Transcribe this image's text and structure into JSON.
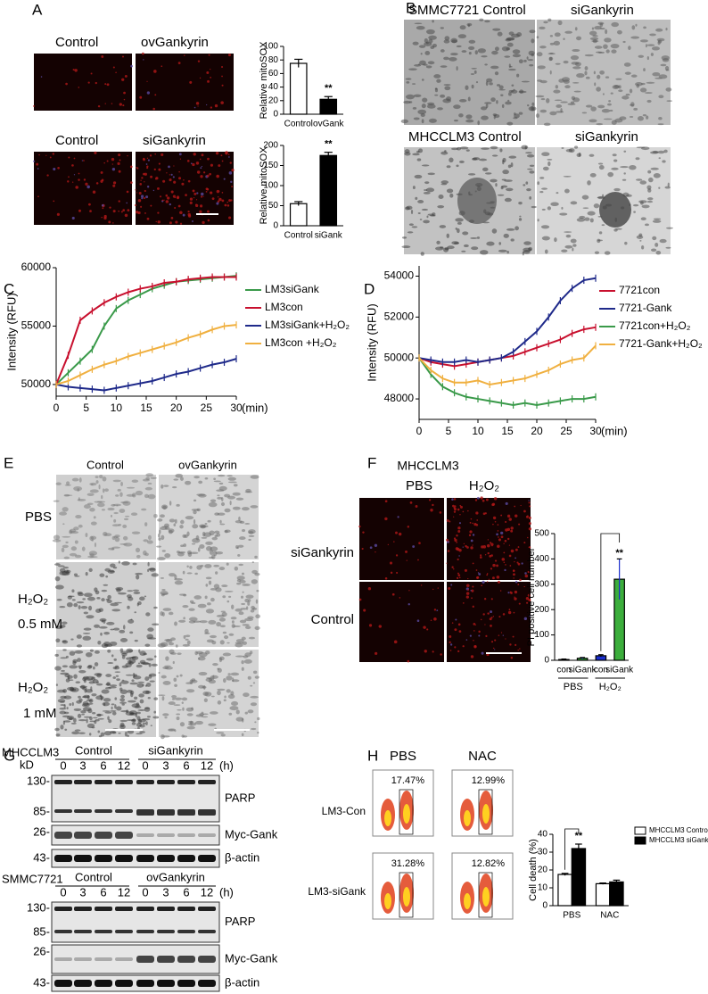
{
  "panel_labels": [
    "A",
    "B",
    "C",
    "D",
    "E",
    "F",
    "G",
    "H"
  ],
  "panel_a": {
    "top": [
      "Control",
      "ovGankyrin"
    ],
    "bottom": [
      "Control",
      "siGankyrin"
    ]
  },
  "panel_b": {
    "top": [
      "SMMC7721 Control",
      "siGankyrin"
    ],
    "bottom": [
      "MHCCLM3 Control",
      "siGankyrin"
    ]
  },
  "panel_e": {
    "columns": [
      "Control",
      "ovGankyrin"
    ],
    "rows": [
      [
        "PBS"
      ],
      [
        "H₂O₂",
        "0.5 mM"
      ],
      [
        "H₂O₂",
        "1 mM"
      ]
    ]
  },
  "panel_f": {
    "title": "MHCCLM3",
    "columns": [
      "PBS",
      "H₂O₂"
    ],
    "rows": [
      "siGankyrin",
      "Control"
    ]
  },
  "panel_g": {
    "blots": [
      {
        "cell_line": "MHCCLM3",
        "groups": [
          "Control",
          "siGankyrin"
        ],
        "unit": "kD",
        "times": [
          "0",
          "3",
          "6",
          "12",
          "0",
          "3",
          "6",
          "12"
        ],
        "time_unit": "(h)",
        "markers": [
          "130-",
          "85-",
          "26-",
          "43-"
        ],
        "proteins": [
          "PARP",
          "Myc-Gank",
          "β-actin"
        ]
      },
      {
        "cell_line": "SMMC7721",
        "groups": [
          "Control",
          "ovGankyrin"
        ],
        "times": [
          "0",
          "3",
          "6",
          "12",
          "0",
          "3",
          "6",
          "12"
        ],
        "time_unit": "(h)",
        "markers": [
          "130-",
          "85-",
          "26-",
          "43-"
        ],
        "proteins": [
          "PARP",
          "Myc-Gank",
          "β-actin"
        ]
      }
    ]
  },
  "panel_h": {
    "columns": [
      "PBS",
      "NAC"
    ],
    "rows": [
      "LM3-Con",
      "LM3-siGank"
    ],
    "percentages": [
      [
        "17.47%",
        "12.99%"
      ],
      [
        "31.28%",
        "12.82%"
      ]
    ]
  },
  "chart_data": [
    {
      "type": "bar",
      "y_label": "Relative mitoSOX",
      "categories": [
        "Control",
        "ovGank"
      ],
      "values": [
        75,
        22
      ],
      "errors": [
        6,
        4
      ],
      "colors": [
        "#ffffff",
        "#000000"
      ],
      "ylim": [
        0,
        100
      ],
      "yticks": [
        0,
        20,
        40,
        60,
        80,
        100
      ],
      "annotation": "**"
    },
    {
      "type": "bar",
      "y_label": "Relative mitoSOX",
      "categories": [
        "Control",
        "siGank"
      ],
      "values": [
        55,
        175
      ],
      "errors": [
        5,
        8
      ],
      "colors": [
        "#ffffff",
        "#000000"
      ],
      "ylim": [
        0,
        200
      ],
      "yticks": [
        0,
        50,
        100,
        150,
        200
      ],
      "annotation": "**"
    },
    {
      "type": "line",
      "y_label": "Intensity (RFU)",
      "x_label": "(min)",
      "x": [
        0,
        2,
        4,
        6,
        8,
        10,
        12,
        14,
        16,
        18,
        20,
        22,
        24,
        26,
        28,
        30
      ],
      "series": [
        {
          "name": "LM3siGank",
          "color": "#3a9a4a",
          "values": [
            50000,
            51000,
            52000,
            53000,
            55000,
            56500,
            57200,
            57700,
            58200,
            58500,
            58800,
            58900,
            59000,
            59100,
            59200,
            59300
          ]
        },
        {
          "name": "LM3con",
          "color": "#c8102e",
          "values": [
            50000,
            52500,
            55500,
            56300,
            57000,
            57500,
            57900,
            58200,
            58400,
            58700,
            58800,
            59000,
            59100,
            59200,
            59200,
            59200
          ]
        },
        {
          "name": "LM3siGank+H₂O₂",
          "color": "#1f2a8a",
          "values": [
            50000,
            49800,
            49700,
            49600,
            49500,
            49700,
            49900,
            50100,
            50300,
            50600,
            50900,
            51100,
            51400,
            51700,
            51900,
            52200
          ]
        },
        {
          "name": "LM3con +H₂O₂",
          "color": "#f0b040",
          "values": [
            50000,
            50300,
            50800,
            51300,
            51700,
            52000,
            52400,
            52700,
            53000,
            53300,
            53600,
            54000,
            54300,
            54700,
            55000,
            55100
          ]
        }
      ],
      "xlim": [
        0,
        30
      ],
      "xticks": [
        0,
        5,
        10,
        15,
        20,
        25,
        30
      ],
      "ylim": [
        49000,
        60000
      ],
      "yticks": [
        50000,
        55000,
        60000
      ]
    },
    {
      "type": "line",
      "y_label": "Intensity (RFU)",
      "x_label": "(min)",
      "x": [
        0,
        2,
        4,
        6,
        8,
        10,
        12,
        14,
        16,
        18,
        20,
        22,
        24,
        26,
        28,
        30
      ],
      "series": [
        {
          "name": "7721con",
          "color": "#c8102e",
          "values": [
            50000,
            49800,
            49700,
            49600,
            49700,
            49800,
            49900,
            50000,
            50100,
            50300,
            50500,
            50700,
            50900,
            51200,
            51400,
            51500
          ]
        },
        {
          "name": "7721-Gank",
          "color": "#1f2a8a",
          "values": [
            50000,
            49900,
            49800,
            49800,
            49900,
            49800,
            49900,
            50000,
            50300,
            50800,
            51300,
            52000,
            52800,
            53400,
            53800,
            53900
          ]
        },
        {
          "name": "7721con+H₂O₂",
          "color": "#3a9a4a",
          "values": [
            50000,
            49200,
            48600,
            48300,
            48100,
            48000,
            47900,
            47800,
            47700,
            47800,
            47700,
            47800,
            47900,
            48000,
            48000,
            48100
          ]
        },
        {
          "name": "7721-Gank+H₂O₂",
          "color": "#f0b040",
          "values": [
            50000,
            49400,
            49000,
            48800,
            48800,
            48900,
            48700,
            48800,
            48900,
            49000,
            49200,
            49400,
            49700,
            49900,
            50000,
            50600
          ]
        }
      ],
      "xlim": [
        0,
        30
      ],
      "xticks": [
        0,
        5,
        10,
        15,
        20,
        25,
        30
      ],
      "ylim": [
        47000,
        54500
      ],
      "yticks": [
        48000,
        50000,
        52000,
        54000
      ]
    },
    {
      "type": "bar",
      "y_label": "PI positive cell number",
      "categories": [
        "con",
        "siGank",
        "con",
        "siGank"
      ],
      "groups": [
        "PBS",
        "H₂O₂"
      ],
      "values": [
        3,
        8,
        18,
        320
      ],
      "errors": [
        2,
        3,
        4,
        80
      ],
      "colors": [
        "#1a2ecc",
        "#3cae3c",
        "#1a2ecc",
        "#3cae3c"
      ],
      "ylim": [
        0,
        500
      ],
      "yticks": [
        0,
        100,
        200,
        300,
        400,
        500
      ],
      "annotation": "**"
    },
    {
      "type": "bar",
      "y_label": "Cell death (%)",
      "categories": [
        "PBS",
        "NAC"
      ],
      "series": [
        {
          "name": "MHCCLM3 Control",
          "color": "#ffffff",
          "values": [
            17.5,
            12.3
          ],
          "errors": [
            0.6,
            0.4
          ]
        },
        {
          "name": "MHCCLM3 siGank",
          "color": "#000000",
          "values": [
            32,
            13.3
          ],
          "errors": [
            2.5,
            1
          ]
        }
      ],
      "ylim": [
        0,
        40
      ],
      "yticks": [
        0,
        10,
        20,
        30,
        40
      ],
      "annotation": "**"
    }
  ]
}
